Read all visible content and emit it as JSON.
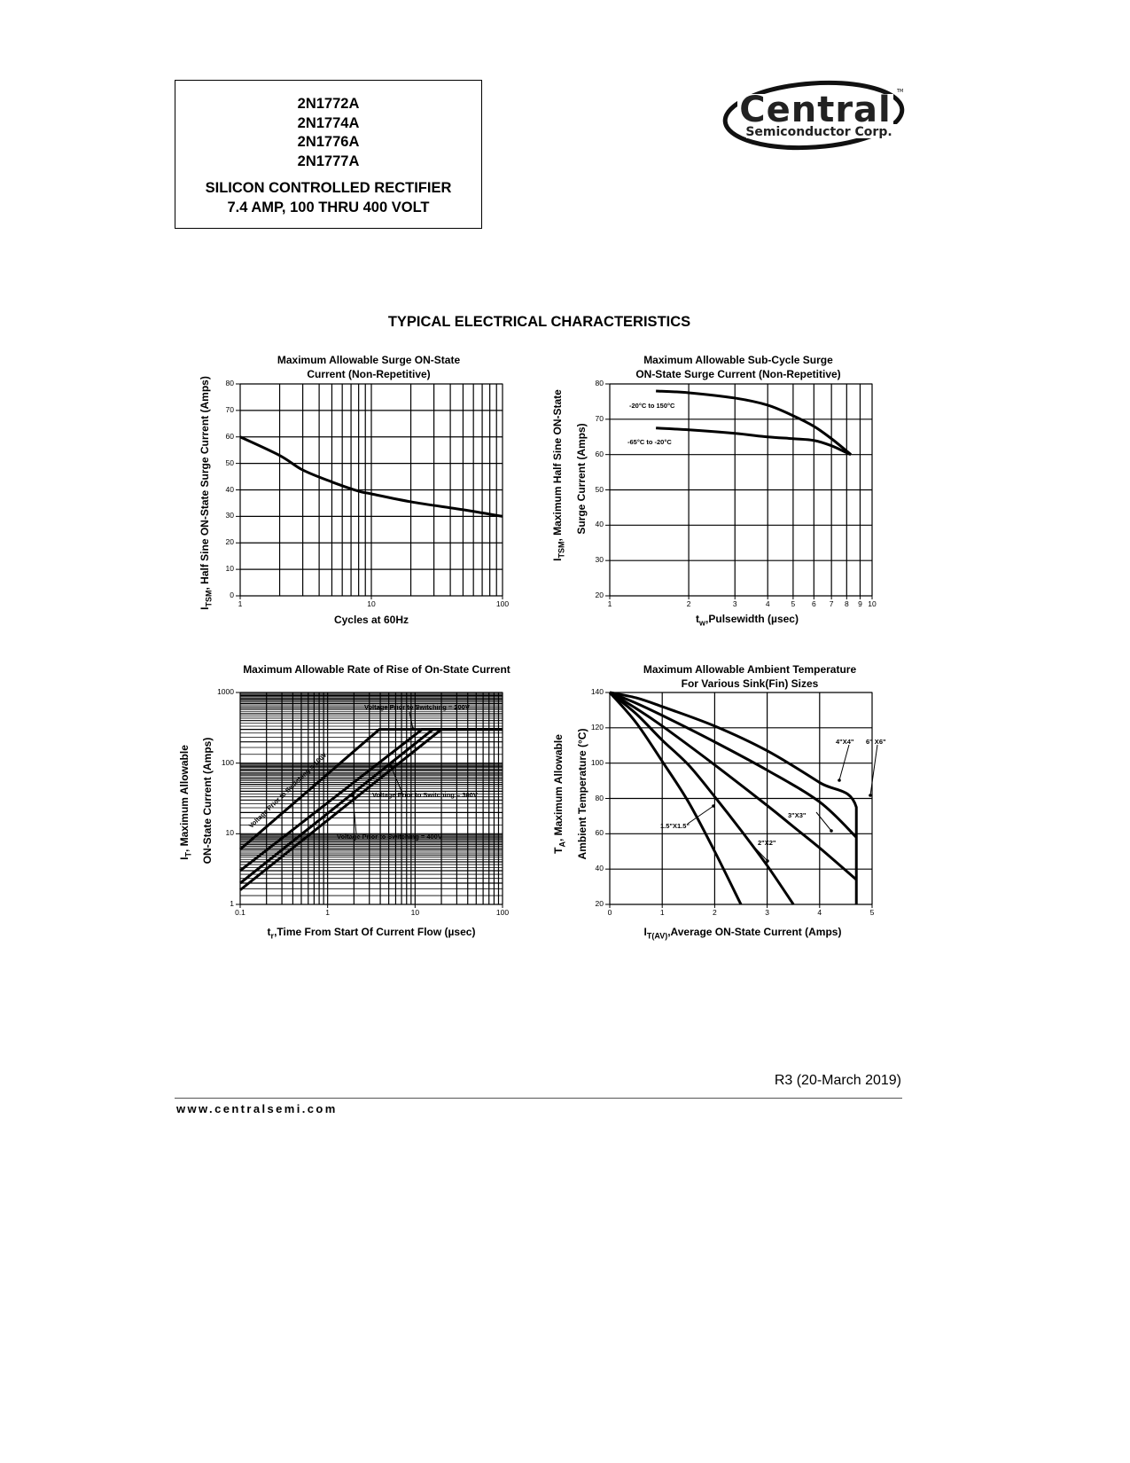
{
  "header": {
    "part_numbers": [
      "2N1772A",
      "2N1774A",
      "2N1776A",
      "2N1777A"
    ],
    "description_line1": "SILICON CONTROLLED RECTIFIER",
    "description_line2": "7.4 AMP, 100 THRU 400 VOLT"
  },
  "logo": {
    "brand": "Central",
    "subtitle": "Semiconductor Corp.",
    "trademark": "TM"
  },
  "section_title": "TYPICAL ELECTRICAL CHARACTERISTICS",
  "footer": {
    "revision": "R3 (20-March 2019)",
    "website": "www.centralsemi.com"
  },
  "chart_data": [
    {
      "type": "line",
      "title_line1": "Maximum Allowable Surge ON-State",
      "title_line2": "Current (Non-Repetitive)",
      "xlabel": "Cycles at 60Hz",
      "ylabel_symbol": "I",
      "ylabel_subscript": "TSM",
      "ylabel_text": ", Half Sine ON-State Surge Current (Amps)",
      "xscale": "log",
      "xlim": [
        1,
        100
      ],
      "ylim": [
        0,
        80
      ],
      "grid": true,
      "xticks": [
        "1",
        "10",
        "100"
      ],
      "yticks": [
        "0",
        "10",
        "20",
        "30",
        "40",
        "50",
        "60",
        "70",
        "80"
      ],
      "series": [
        {
          "x": [
            1,
            2,
            3,
            5,
            8,
            10,
            20,
            50,
            100
          ],
          "y": [
            60,
            53,
            47.5,
            43,
            39.5,
            38.5,
            35.5,
            32.5,
            30
          ]
        }
      ]
    },
    {
      "type": "line",
      "title_line1": "Maximum Allowable Sub-Cycle Surge",
      "title_line2": "ON-State Surge Current   (Non-Repetitive)",
      "xlabel_symbol": "t",
      "xlabel_subscript": "w",
      "xlabel_text": ",Pulsewidth (µsec)",
      "ylabel_symbol": "I",
      "ylabel_subscript": "TSM",
      "ylabel_text": ", Maximum Half Sine ON-State",
      "ylabel_line2": "Surge Current (Amps)",
      "xscale": "log",
      "xlim": [
        1,
        10
      ],
      "ylim": [
        20,
        80
      ],
      "grid": true,
      "xticks": [
        "1",
        "2",
        "3",
        "4",
        "5",
        "6",
        "7",
        "8",
        "9",
        "10"
      ],
      "yticks": [
        "20",
        "30",
        "40",
        "50",
        "60",
        "70",
        "80"
      ],
      "series": [
        {
          "name": "-20°C to 150°C",
          "x": [
            1.5,
            2,
            3,
            4,
            5,
            6,
            7,
            8,
            8.3
          ],
          "y": [
            78,
            77.5,
            76,
            74,
            71,
            68,
            64.5,
            61,
            60
          ]
        },
        {
          "name": "-65°C to -20°C",
          "x": [
            1.5,
            2,
            3,
            4,
            5,
            6,
            7,
            8,
            8.3
          ],
          "y": [
            67.5,
            67,
            66,
            65,
            64.5,
            64,
            62.5,
            60.5,
            60
          ]
        }
      ]
    },
    {
      "type": "line",
      "title_line1": "Maximum Allowable Rate of Rise of On-State Current",
      "xlabel_symbol": "t",
      "xlabel_subscript": "r",
      "xlabel_text": ",Time From Start Of Current Flow (µsec)",
      "ylabel_symbol": "I",
      "ylabel_subscript": "T",
      "ylabel_text": ", Maximum Allowable",
      "ylabel_line2": "ON-State Current (Amps)",
      "xscale": "log",
      "yscale": "log",
      "xlim": [
        0.1,
        100
      ],
      "ylim": [
        1,
        1000
      ],
      "grid": true,
      "xticks": [
        "0.1",
        "1",
        "10",
        "100"
      ],
      "yticks": [
        "1",
        "10",
        "100",
        "1000"
      ],
      "series": [
        {
          "name": "Voltage Prior to Switching = 100V",
          "x": [
            0.1,
            3.9,
            100
          ],
          "y": [
            6,
            300,
            300
          ]
        },
        {
          "name": "Voltage Prior to Switching = 200V",
          "x": [
            0.1,
            12,
            100
          ],
          "y": [
            3,
            300,
            300
          ]
        },
        {
          "name": "Voltage Prior to Switching = 300V",
          "x": [
            0.1,
            16,
            100
          ],
          "y": [
            2,
            300,
            300
          ]
        },
        {
          "name": "Voltage Prior to Switching = 400V",
          "x": [
            0.1,
            20,
            100
          ],
          "y": [
            1.6,
            300,
            300
          ]
        }
      ]
    },
    {
      "type": "line",
      "title_line1": "Maximum Allowable Ambient Temperature",
      "title_line2": "For Various Sink(Fin) Sizes",
      "xlabel_symbol": "I",
      "xlabel_subscript": "T(AV)",
      "xlabel_text": ",Average ON-State Current (Amps)",
      "ylabel_symbol": "T",
      "ylabel_subscript": "A",
      "ylabel_text": ", Maximum Allowable",
      "ylabel_line2": "Ambient Temperature  (°C)",
      "xlim": [
        0,
        5
      ],
      "ylim": [
        20,
        140
      ],
      "grid": true,
      "xticks": [
        "0",
        "1",
        "2",
        "3",
        "4",
        "5"
      ],
      "yticks": [
        "20",
        "40",
        "60",
        "80",
        "100",
        "120",
        "140"
      ],
      "series": [
        {
          "name": "1.5\"X1.5\"",
          "x": [
            0,
            0.5,
            1,
            1.5,
            2,
            2.5
          ],
          "y": [
            140,
            123,
            101,
            78,
            50,
            20
          ]
        },
        {
          "name": "2\"X2\"",
          "x": [
            0,
            0.5,
            1,
            1.5,
            2,
            2.5,
            3,
            3.5
          ],
          "y": [
            140,
            128,
            113,
            99,
            81,
            62,
            42,
            20
          ]
        },
        {
          "name": "3\"X3\"",
          "x": [
            0,
            0.5,
            1,
            2,
            3,
            3.5,
            4,
            4.7
          ],
          "y": [
            140,
            131,
            121,
            99,
            76,
            64,
            52,
            34
          ]
        },
        {
          "name": "4\"X4\"",
          "x": [
            0,
            0.5,
            1,
            2,
            3,
            4,
            4.7
          ],
          "y": [
            140,
            134,
            127,
            112,
            96,
            78,
            58
          ]
        },
        {
          "name": "6\" X6\"",
          "x": [
            0,
            0.5,
            1,
            2,
            3,
            4,
            4.7,
            4.7
          ],
          "y": [
            140,
            137,
            132,
            121,
            107,
            89,
            75,
            20
          ]
        }
      ]
    }
  ]
}
